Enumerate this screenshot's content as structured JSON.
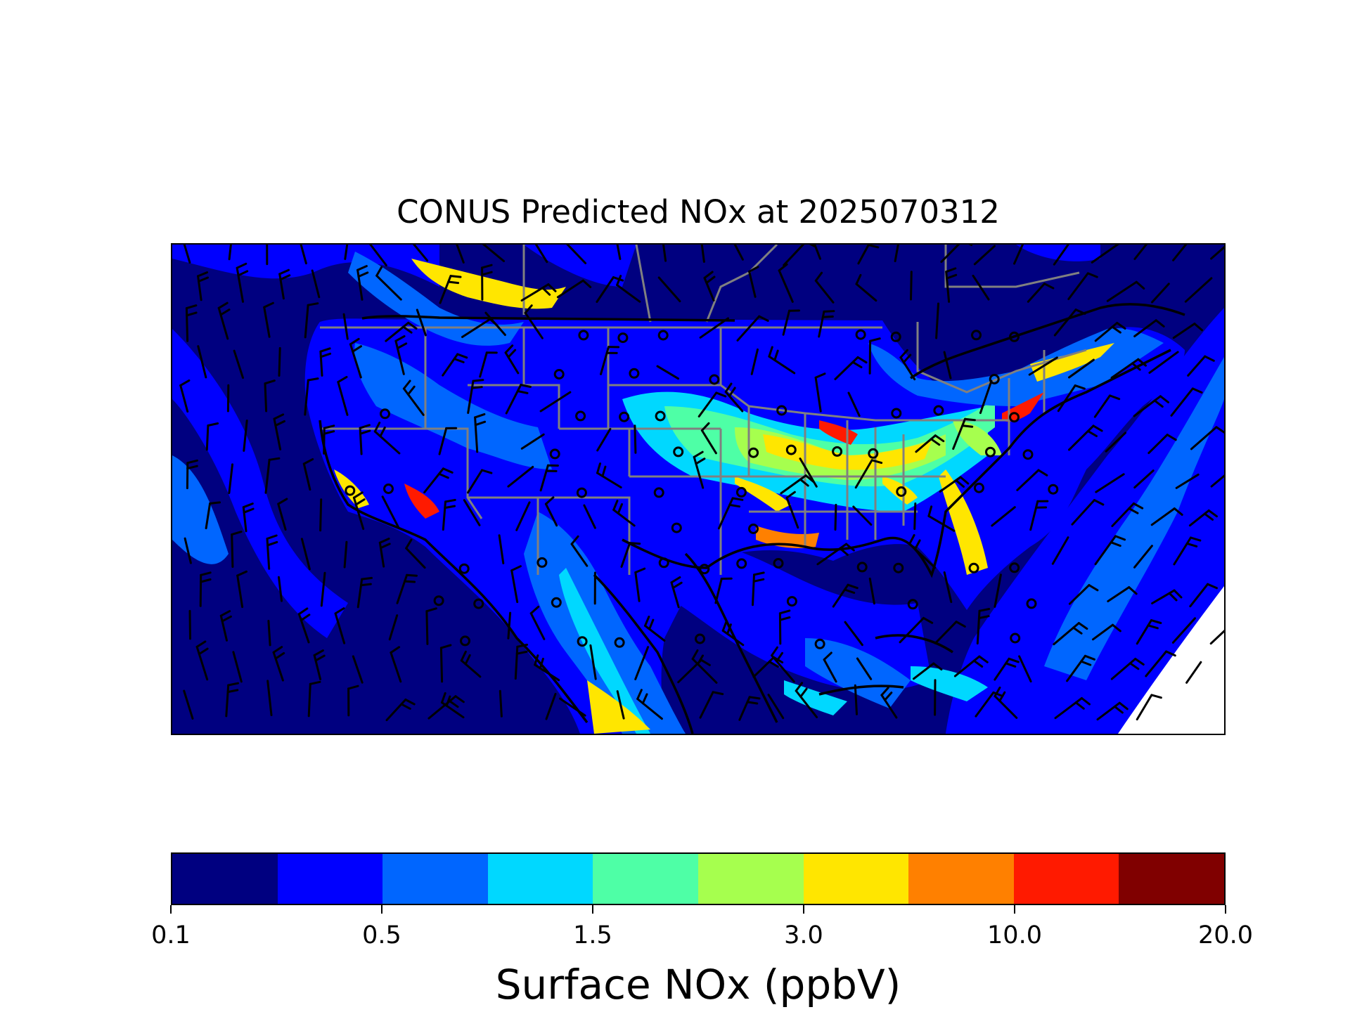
{
  "title": "CONUS Predicted NOx at 2025070312",
  "colorbar": {
    "label": "Surface NOx (ppbV)",
    "tick_labels": [
      "0.1",
      "0.5",
      "1.5",
      "3.0",
      "10.0",
      "20.0"
    ],
    "levels_colors": [
      "#000080",
      "#0000ff",
      "#0066ff",
      "#00d8ff",
      "#4effa6",
      "#a6ff4e",
      "#ffe600",
      "#ff8000",
      "#ff1a00",
      "#800000"
    ]
  },
  "map": {
    "extent": "Contiguous United States",
    "overlays": [
      "state-boundaries",
      "coastlines",
      "national-borders",
      "wind-barbs",
      "calm-circles"
    ],
    "no_data_color": "#ffffff"
  }
}
